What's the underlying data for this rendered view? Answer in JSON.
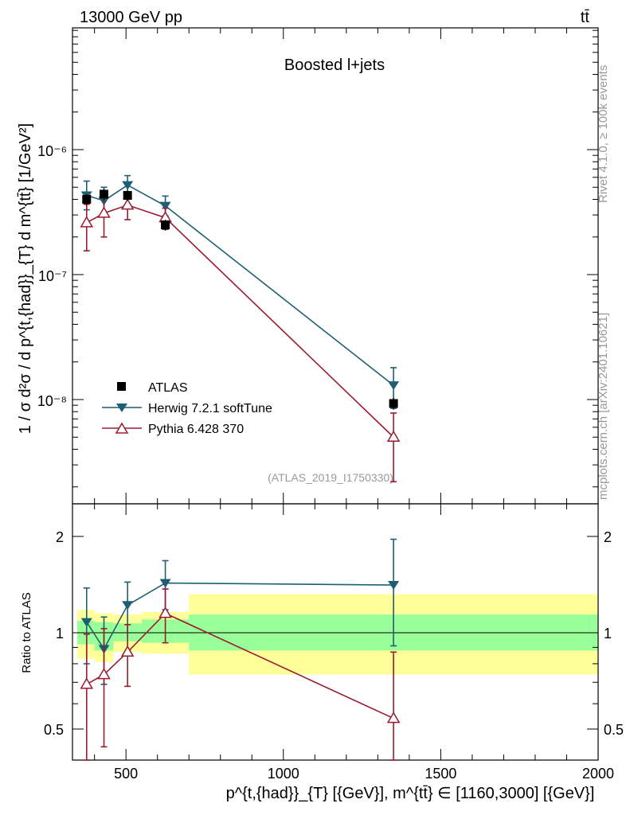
{
  "header": {
    "energy_label": "13000 GeV pp",
    "process_label": "tt̄",
    "plot_title": "Boosted l+jets",
    "analysis_id": "(ATLAS_2019_I1750330)",
    "rivet_label": "Rivet 4.1.0, ≥ 100k events",
    "source_label": "mcplots.cern.ch [arXiv:2401.10621]"
  },
  "axes": {
    "ylabel_main": "1 / σ d²σ / d p^{t,{had}}_{T} d m^{tt̄} [1/GeV²]",
    "ylabel_ratio": "Ratio to ATLAS",
    "xlabel": "p^{t,{had}}_{T} [{GeV}], m^{tt̄} ∈ [1160,3000] [{GeV}]",
    "x_ticks": [
      "500",
      "1000",
      "1500",
      "2000"
    ],
    "y_ticks_main": [
      "10⁻⁸",
      "10⁻⁷",
      "10⁻⁶"
    ],
    "y_ticks_ratio": [
      "0.5",
      "1",
      "2"
    ]
  },
  "legend": {
    "atlas": "ATLAS",
    "herwig": "Herwig 7.2.1 softTune",
    "pythia": "Pythia 6.428 370"
  },
  "colors": {
    "atlas": "#000000",
    "herwig": "#1f5f73",
    "pythia": "#9b1b30",
    "band_outer": "#ffff99",
    "band_inner": "#99ff99"
  },
  "chart_data": {
    "type": "scatter",
    "xlim": [
      330,
      2000
    ],
    "main": {
      "yscale": "log",
      "ylim": [
        1.8e-09,
        1e-05
      ],
      "series": [
        {
          "name": "ATLAS",
          "x": [
            375,
            430,
            505,
            625,
            1350
          ],
          "y": [
            4e-07,
            4.4e-07,
            4.3e-07,
            2.5e-07,
            9.3e-09
          ],
          "err_lo": [
            4e-08,
            4.5e-08,
            4e-08,
            2.5e-08,
            1e-09
          ],
          "err_hi": [
            4e-08,
            4.5e-08,
            4e-08,
            2.5e-08,
            1e-09
          ]
        },
        {
          "name": "Herwig 7.2.1 softTune",
          "x": [
            375,
            430,
            505,
            625,
            1350
          ],
          "y": [
            4.3e-07,
            3.9e-07,
            5.2e-07,
            3.55e-07,
            1.3e-08
          ],
          "err_lo": [
            1e-07,
            8e-08,
            9e-08,
            6e-08,
            4.5e-09
          ],
          "err_hi": [
            1.3e-07,
            1.1e-07,
            1e-07,
            7e-08,
            5e-09
          ]
        },
        {
          "name": "Pythia 6.428 370",
          "x": [
            375,
            430,
            505,
            625,
            1350
          ],
          "y": [
            2.6e-07,
            3.1e-07,
            3.6e-07,
            2.85e-07,
            5e-09
          ],
          "err_lo": [
            1.05e-07,
            1.1e-07,
            8.5e-08,
            5.5e-08,
            2.8e-09
          ],
          "err_hi": [
            1.05e-07,
            1.2e-07,
            8.5e-08,
            5.5e-08,
            2.8e-09
          ]
        }
      ]
    },
    "ratio": {
      "yscale": "log",
      "ylim": [
        0.42,
        2.4
      ],
      "bands": [
        {
          "x0": 345,
          "x1": 400,
          "inner": [
            0.92,
            1.09
          ],
          "outer": [
            0.83,
            1.18
          ]
        },
        {
          "x0": 400,
          "x1": 460,
          "inner": [
            0.88,
            1.08
          ],
          "outer": [
            0.81,
            1.15
          ]
        },
        {
          "x0": 460,
          "x1": 550,
          "inner": [
            0.94,
            1.07
          ],
          "outer": [
            0.87,
            1.14
          ]
        },
        {
          "x0": 550,
          "x1": 700,
          "inner": [
            0.93,
            1.1
          ],
          "outer": [
            0.86,
            1.16
          ]
        },
        {
          "x0": 700,
          "x1": 2000,
          "inner": [
            0.88,
            1.14
          ],
          "outer": [
            0.74,
            1.32
          ]
        }
      ],
      "series": [
        {
          "name": "Herwig 7.2.1 softTune",
          "x": [
            375,
            430,
            505,
            625,
            1350
          ],
          "y": [
            1.08,
            0.89,
            1.22,
            1.43,
            1.41
          ],
          "err_lo": [
            0.28,
            0.2,
            0.22,
            0.25,
            0.5
          ],
          "err_hi": [
            0.3,
            0.23,
            0.22,
            0.25,
            0.55
          ]
        },
        {
          "name": "Pythia 6.428 370",
          "x": [
            375,
            430,
            505,
            625,
            1350
          ],
          "y": [
            0.69,
            0.74,
            0.87,
            1.15,
            0.54
          ],
          "err_lo": [
            0.3,
            0.3,
            0.19,
            0.22,
            0.35
          ],
          "err_hi": [
            0.3,
            0.29,
            0.19,
            0.22,
            0.33
          ]
        }
      ]
    }
  }
}
